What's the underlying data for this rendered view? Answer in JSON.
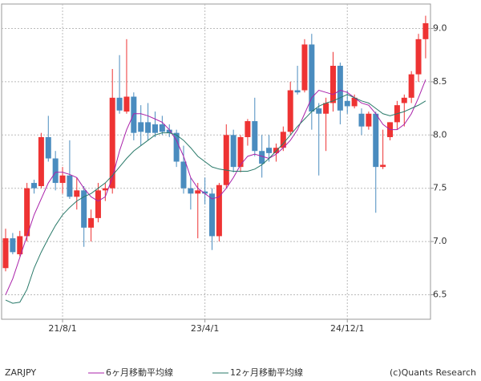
{
  "chart_data": {
    "type": "candlestick",
    "categories": [
      null,
      null,
      null,
      null,
      null,
      null,
      null,
      null,
      "21/8/1",
      null,
      null,
      null,
      null,
      null,
      null,
      null,
      null,
      null,
      null,
      null,
      null,
      null,
      null,
      null,
      null,
      null,
      null,
      null,
      "23/4/1",
      null,
      null,
      null,
      null,
      null,
      null,
      null,
      null,
      null,
      null,
      null,
      null,
      null,
      null,
      null,
      null,
      null,
      null,
      null,
      "24/12/1",
      null,
      null,
      null,
      null,
      null,
      null,
      null,
      null,
      null,
      null,
      null
    ],
    "candles": {
      "name": "ZARJPY",
      "up_color": "#ee3333",
      "down_color": "#4a8cbf",
      "open": [
        6.75,
        7.03,
        6.88,
        7.05,
        7.55,
        7.52,
        7.98,
        7.78,
        7.55,
        7.62,
        7.42,
        7.48,
        7.13,
        7.22,
        7.48,
        7.5,
        8.35,
        8.22,
        8.36,
        8.12,
        8.12,
        8.1,
        8.1,
        8.05,
        8.02,
        7.75,
        7.5,
        7.45,
        7.47,
        7.45,
        7.05,
        7.53,
        8.0,
        7.7,
        7.98,
        8.13,
        7.85,
        7.88,
        7.83,
        7.88,
        8.03,
        8.42,
        8.42,
        8.85,
        8.25,
        8.2,
        8.3,
        8.65,
        8.32,
        8.27,
        8.2,
        8.08,
        8.2,
        7.7,
        7.98,
        8.12,
        8.3,
        8.35,
        8.57,
        8.9
      ],
      "high": [
        7.12,
        7.08,
        7.1,
        7.55,
        7.58,
        8.02,
        8.18,
        7.85,
        7.7,
        7.95,
        7.6,
        7.52,
        7.3,
        7.55,
        7.55,
        8.62,
        8.75,
        8.9,
        8.4,
        8.28,
        8.3,
        8.22,
        8.18,
        8.1,
        8.05,
        7.9,
        7.6,
        7.55,
        7.6,
        7.5,
        7.55,
        8.1,
        8.05,
        8.0,
        8.15,
        8.35,
        8.0,
        8.0,
        7.92,
        8.08,
        8.5,
        8.65,
        8.9,
        8.95,
        8.3,
        8.35,
        8.78,
        8.68,
        8.42,
        8.38,
        8.25,
        8.22,
        8.22,
        8.05,
        8.12,
        8.32,
        8.38,
        8.6,
        8.95,
        9.12
      ],
      "low": [
        6.72,
        6.88,
        6.86,
        7.0,
        7.45,
        7.5,
        7.75,
        7.48,
        7.45,
        7.4,
        7.3,
        6.95,
        7.0,
        7.18,
        7.38,
        7.45,
        8.2,
        8.2,
        7.95,
        7.9,
        7.95,
        7.98,
        8.0,
        7.98,
        7.7,
        7.45,
        7.3,
        7.03,
        7.35,
        6.92,
        7.0,
        7.5,
        7.65,
        7.65,
        7.9,
        7.8,
        7.6,
        7.75,
        7.75,
        7.85,
        8.0,
        8.38,
        8.4,
        8.05,
        7.62,
        7.85,
        8.22,
        8.1,
        8.2,
        8.25,
        8.0,
        8.05,
        7.27,
        7.68,
        7.95,
        8.05,
        8.08,
        8.3,
        8.5,
        8.72
      ],
      "close": [
        7.03,
        6.9,
        7.05,
        7.5,
        7.5,
        7.98,
        7.78,
        7.55,
        7.62,
        7.42,
        7.48,
        7.13,
        7.22,
        7.48,
        7.5,
        8.35,
        8.23,
        8.36,
        8.02,
        8.03,
        8.02,
        8.02,
        8.03,
        8.02,
        7.75,
        7.5,
        7.45,
        7.48,
        7.45,
        7.05,
        7.53,
        8.0,
        7.7,
        7.98,
        8.13,
        7.85,
        7.73,
        7.83,
        7.88,
        8.03,
        8.42,
        8.4,
        8.85,
        8.22,
        8.2,
        8.3,
        8.65,
        8.23,
        8.27,
        8.35,
        8.08,
        8.2,
        7.7,
        7.72,
        8.12,
        8.28,
        8.35,
        8.57,
        8.9,
        9.05
      ]
    },
    "series": [
      {
        "name": "6ヶ月移動平均線",
        "color": "#aa22aa",
        "values": [
          6.5,
          6.65,
          6.85,
          7.05,
          7.25,
          7.4,
          7.55,
          7.65,
          7.65,
          7.63,
          7.6,
          7.5,
          7.42,
          7.38,
          7.42,
          7.6,
          7.85,
          8.05,
          8.2,
          8.2,
          8.18,
          8.15,
          8.12,
          8.05,
          7.95,
          7.8,
          7.6,
          7.5,
          7.45,
          7.4,
          7.42,
          7.5,
          7.6,
          7.72,
          7.8,
          7.82,
          7.8,
          7.78,
          7.82,
          7.88,
          7.95,
          8.05,
          8.2,
          8.35,
          8.42,
          8.4,
          8.38,
          8.42,
          8.4,
          8.35,
          8.3,
          8.28,
          8.2,
          8.1,
          8.05,
          8.05,
          8.1,
          8.2,
          8.35,
          8.52
        ]
      },
      {
        "name": "12ヶ月移動平均線",
        "color": "#2a7a6a",
        "values": [
          6.45,
          6.42,
          6.43,
          6.55,
          6.75,
          6.9,
          7.03,
          7.15,
          7.25,
          7.32,
          7.38,
          7.42,
          7.45,
          7.5,
          7.55,
          7.62,
          7.7,
          7.78,
          7.85,
          7.9,
          7.95,
          8.0,
          8.02,
          8.02,
          8.0,
          7.95,
          7.88,
          7.8,
          7.75,
          7.7,
          7.68,
          7.67,
          7.66,
          7.66,
          7.66,
          7.68,
          7.72,
          7.78,
          7.85,
          7.92,
          8.0,
          8.08,
          8.15,
          8.22,
          8.27,
          8.3,
          8.32,
          8.35,
          8.38,
          8.35,
          8.32,
          8.3,
          8.25,
          8.2,
          8.18,
          8.2,
          8.22,
          8.25,
          8.28,
          8.32
        ]
      }
    ],
    "ylim": [
      6.27,
      9.23
    ],
    "yticks": [
      6.5,
      {
        "value": 7,
        "label": "7.0"
      },
      7.5,
      {
        "value": 8,
        "label": "8.0"
      },
      8.5,
      {
        "value": 9,
        "label": "9.0"
      }
    ],
    "grid": true,
    "copyright": "(c)Quants Research"
  }
}
